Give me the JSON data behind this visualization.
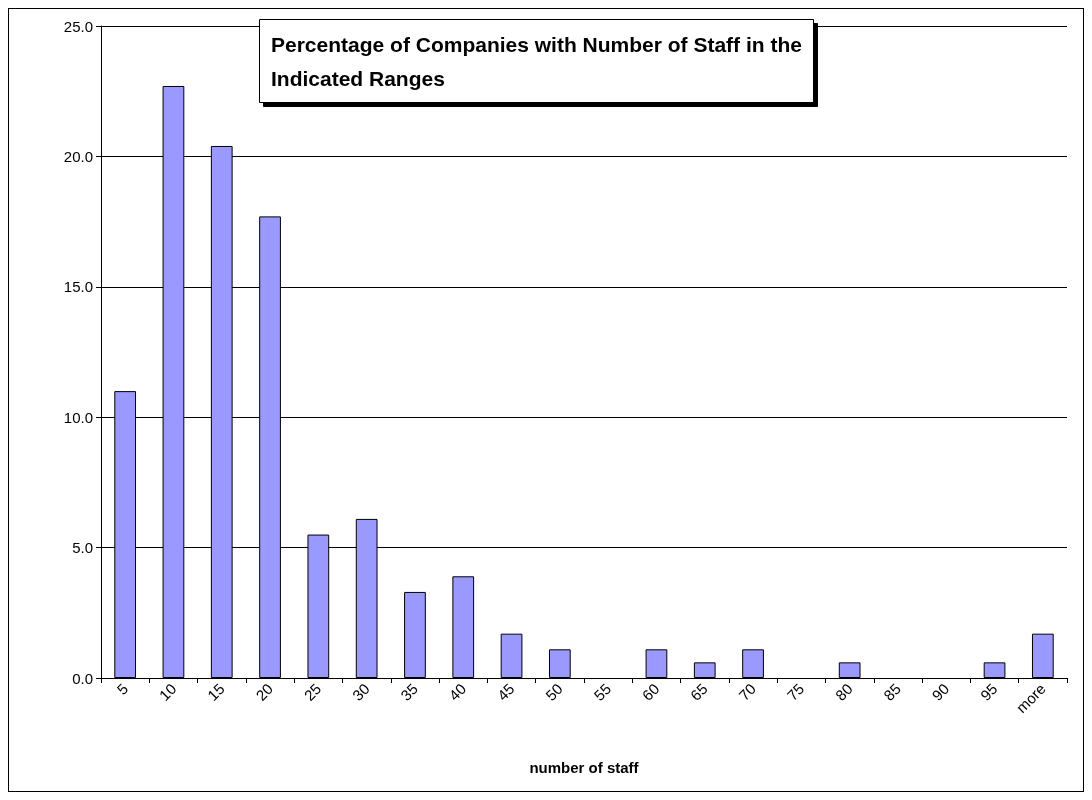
{
  "chart_data": {
    "type": "bar",
    "title": "Percentage of Companies with Number of Staff in the\nIndicated Ranges",
    "xlabel": "number of staff",
    "categories": [
      "5",
      "10",
      "15",
      "20",
      "25",
      "30",
      "35",
      "40",
      "45",
      "50",
      "55",
      "60",
      "65",
      "70",
      "75",
      "80",
      "85",
      "90",
      "95",
      "more"
    ],
    "values": [
      11.0,
      22.7,
      20.4,
      17.7,
      5.5,
      6.1,
      3.3,
      3.9,
      1.7,
      1.1,
      0,
      1.1,
      0.6,
      1.1,
      0,
      0.6,
      0,
      0,
      0.6,
      1.7
    ],
    "color": "#9999ff",
    "ylim": [
      0,
      25
    ],
    "yticks": [
      {
        "value": 0,
        "label": "0.0"
      },
      {
        "value": 5,
        "label": "5.0"
      },
      {
        "value": 10,
        "label": "10.0"
      },
      {
        "value": 15,
        "label": "15.0"
      },
      {
        "value": 20,
        "label": "20.0"
      },
      {
        "value": 25,
        "label": "25.0"
      }
    ],
    "grid": "y"
  }
}
